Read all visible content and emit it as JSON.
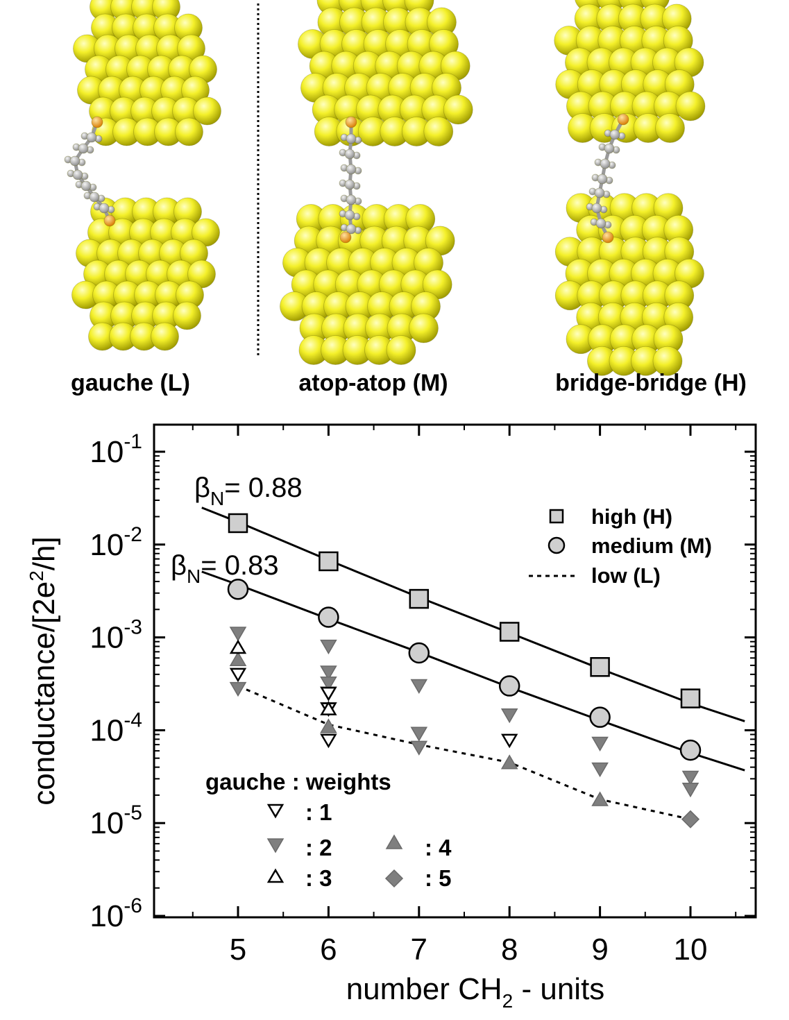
{
  "structures": {
    "captions": [
      "gauche (L)",
      "atop-atop (M)",
      "bridge-bridge (H)"
    ]
  },
  "chart_data": {
    "type": "scatter",
    "xlabel_main": "number CH",
    "xlabel_sub": "2",
    "xlabel_tail": " - units",
    "ylabel": "conductance/[2e",
    "ylabel_sup": "2",
    "ylabel_tail": "/h]",
    "xlim": [
      4.0,
      11.0
    ],
    "ylim": [
      1e-06,
      0.1
    ],
    "yscale": "log",
    "grid": false,
    "x_ticks": [
      5,
      6,
      7,
      8,
      9,
      10
    ],
    "x_tick_labels": [
      "5",
      "6",
      "7",
      "8",
      "9",
      "10"
    ],
    "y_ticks": [
      0.1,
      0.01,
      0.001,
      0.0001,
      1e-05,
      1e-06
    ],
    "y_tick_labels": [
      {
        "base": "10",
        "exp": "-1"
      },
      {
        "base": "10",
        "exp": "-2"
      },
      {
        "base": "10",
        "exp": "-3"
      },
      {
        "base": "10",
        "exp": "-4"
      },
      {
        "base": "10",
        "exp": "-5"
      },
      {
        "base": "10",
        "exp": "-6"
      }
    ],
    "legend": {
      "placement": "top-right",
      "entries": [
        {
          "label": "high (H)",
          "marker": "square",
          "color": "#2a4aa8"
        },
        {
          "label": "medium (M)",
          "marker": "circle",
          "color": "#12904a"
        },
        {
          "label": "low (L)",
          "marker": "dashed-line",
          "color": "#e23a2a"
        }
      ]
    },
    "gauche_legend": {
      "title": "gauche : weights",
      "entries": [
        {
          "label": ": 1",
          "marker": "tri-down-open"
        },
        {
          "label": ": 2",
          "marker": "tri-down-gray"
        },
        {
          "label": ": 3",
          "marker": "tri-up-open"
        },
        {
          "label": ": 4",
          "marker": "tri-up-gray"
        },
        {
          "label": ": 5",
          "marker": "diamond-gray"
        }
      ]
    },
    "annotations": [
      {
        "text": "= 0.88",
        "symbol": "β",
        "sub": "N",
        "anchor_x": 5.0,
        "anchor_y": 0.045
      },
      {
        "text": "= 0.83",
        "symbol": "β",
        "sub": "N",
        "anchor_x": 4.9,
        "anchor_y": 0.0072
      }
    ],
    "series": [
      {
        "name": "high (H)",
        "marker": "square",
        "x": [
          5,
          6,
          7,
          8,
          9,
          10
        ],
        "y": [
          0.017,
          0.0066,
          0.0026,
          0.00115,
          0.00048,
          0.00022
        ],
        "fit_x": [
          4.6,
          5,
          6,
          7,
          8,
          9,
          10,
          10.6
        ],
        "fit_y": [
          0.025,
          0.0175,
          0.0068,
          0.0027,
          0.00112,
          0.00046,
          0.000195,
          0.000125
        ]
      },
      {
        "name": "medium (M)",
        "marker": "circle",
        "x": [
          5,
          6,
          7,
          8,
          9,
          10
        ],
        "y": [
          0.0033,
          0.00165,
          0.00068,
          0.0003,
          0.000138,
          6.1e-05
        ],
        "fit_x": [
          4.6,
          5,
          6,
          7,
          8,
          9,
          10,
          10.6
        ],
        "fit_y": [
          0.0051,
          0.0037,
          0.00158,
          0.00069,
          0.00029,
          0.000128,
          5.7e-05,
          3.7e-05
        ]
      },
      {
        "name": "low (L)",
        "marker": "none",
        "line": "dashed",
        "x": [
          5,
          6,
          7,
          8,
          9,
          10
        ],
        "y": [
          0.0003,
          0.000115,
          7e-05,
          4.5e-05,
          1.8e-05,
          1.1e-05
        ]
      },
      {
        "name": ": 1",
        "marker": "tri-down-open",
        "x": [
          5,
          6,
          6,
          6,
          8
        ],
        "y": [
          0.0004,
          0.00017,
          0.00025,
          7.8e-05,
          7.8e-05
        ]
      },
      {
        "name": ": 2",
        "marker": "tri-down-gray",
        "x": [
          5,
          5,
          6,
          6,
          6,
          6,
          6,
          7,
          7,
          7,
          8,
          9,
          9,
          10,
          10
        ],
        "y": [
          0.0011,
          0.00028,
          0.0008,
          0.00042,
          0.00032,
          0.00025,
          0.00017,
          0.0003,
          9.2e-05,
          6.5e-05,
          0.000145,
          7.2e-05,
          3.8e-05,
          3.1e-05,
          2.3e-05
        ]
      },
      {
        "name": ": 3",
        "marker": "tri-up-open",
        "x": [
          5,
          6
        ],
        "y": [
          0.00078,
          0.00017
        ]
      },
      {
        "name": ": 4",
        "marker": "tri-up-gray",
        "x": [
          5,
          6,
          8,
          9
        ],
        "y": [
          0.00058,
          0.00011,
          4.5e-05,
          1.8e-05
        ]
      },
      {
        "name": ": 5",
        "marker": "diamond-gray",
        "x": [
          10
        ],
        "y": [
          1.1e-05
        ]
      }
    ]
  }
}
